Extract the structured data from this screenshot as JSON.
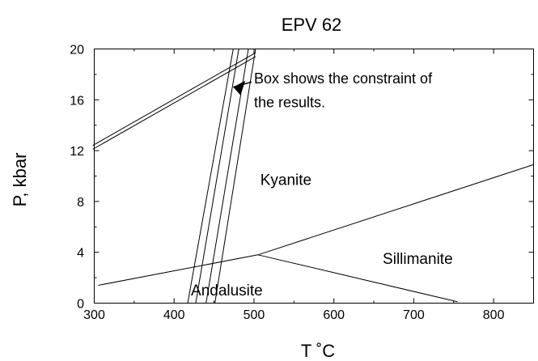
{
  "chart_data": {
    "type": "line",
    "title": "EPV 62",
    "xlabel": "T ˚C",
    "ylabel": "P, kbar",
    "xlim": [
      300,
      850
    ],
    "ylim": [
      0,
      20
    ],
    "xticks": [
      300,
      400,
      500,
      600,
      700,
      800
    ],
    "yticks": [
      0,
      4,
      8,
      12,
      16,
      20
    ],
    "series": [
      {
        "values": [
          [
            305,
            1.4
          ],
          [
            505,
            3.8
          ],
          [
            850,
            10.9
          ]
        ]
      },
      {
        "values": [
          [
            505,
            3.8
          ],
          [
            755,
            0.1
          ]
        ]
      },
      {
        "values": [
          [
            298,
            12.1
          ],
          [
            502,
            19.4
          ]
        ]
      },
      {
        "values": [
          [
            298,
            12.4
          ],
          [
            502,
            19.7
          ]
        ]
      },
      {
        "values": [
          [
            417,
            0.0
          ],
          [
            474,
            20.0
          ]
        ]
      },
      {
        "values": [
          [
            427,
            0.0
          ],
          [
            481,
            20.0
          ]
        ]
      },
      {
        "values": [
          [
            440,
            0.0
          ],
          [
            493,
            20.0
          ]
        ]
      },
      {
        "values": [
          [
            451,
            0.0
          ],
          [
            502,
            20.0
          ]
        ]
      }
    ],
    "annotations": [
      {
        "text": "Kyanite",
        "x": 540,
        "y": 9.3
      },
      {
        "text": "Sillimanite",
        "x": 705,
        "y": 3.1
      },
      {
        "text": "Andalusite",
        "x": 466,
        "y": 0.6
      },
      {
        "text": "Box shows the constraint of",
        "x": 500,
        "y": 17.3
      },
      {
        "text": "the results.",
        "x": 500,
        "y": 15.4
      }
    ],
    "arrow": {
      "from": [
        497,
        17.4
      ],
      "to": [
        474,
        17.0
      ]
    },
    "grid": false
  }
}
